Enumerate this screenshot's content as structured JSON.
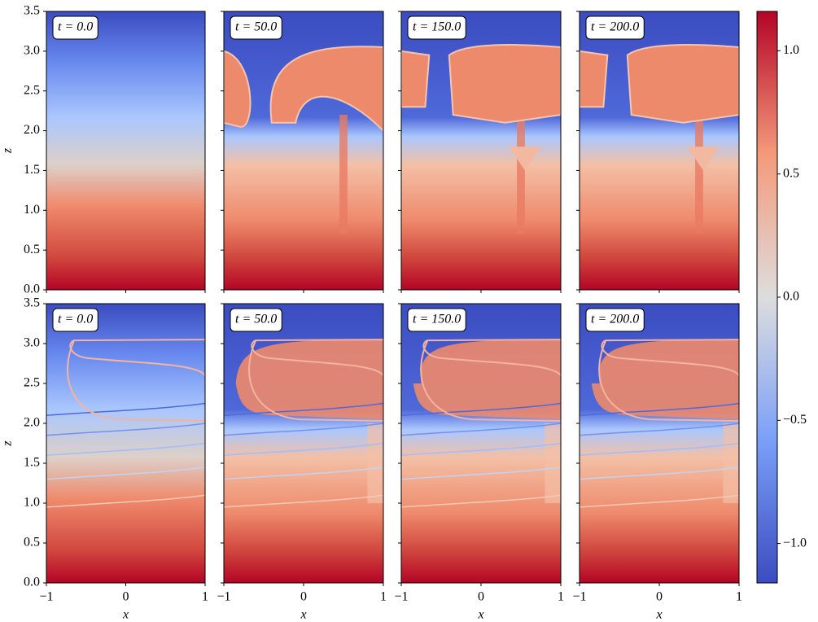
{
  "chart_data": {
    "type": "heatmap",
    "colormap": "coolwarm",
    "panels": [
      {
        "label": "t = 0.0"
      },
      {
        "label": "t = 50.0"
      },
      {
        "label": "t = 150.0"
      },
      {
        "label": "t = 200.0"
      },
      {
        "label": "t = 0.0"
      },
      {
        "label": "t = 50.0"
      },
      {
        "label": "t = 150.0"
      },
      {
        "label": "t = 200.0"
      }
    ],
    "xlabel": "x",
    "ylabel": "z",
    "xlim": [
      -1,
      1
    ],
    "xticks": [
      {
        "value": -1,
        "label": "−1"
      },
      0,
      1
    ],
    "ylim": [
      0,
      3.5
    ],
    "yticks": [
      {
        "value": 0,
        "label": "0.0"
      },
      0.5,
      {
        "value": 1,
        "label": "1.0"
      },
      1.5,
      {
        "value": 2,
        "label": "2.0"
      },
      2.5,
      {
        "value": 3,
        "label": "3.0"
      },
      3.5
    ],
    "colorbar": {
      "lim": [
        -1.16,
        1.16
      ],
      "ticks": [
        {
          "value": -1,
          "label": "−1.0"
        },
        {
          "value": -0.5,
          "label": "−0.5"
        },
        {
          "value": 0,
          "label": "0.0"
        },
        {
          "value": 0.5,
          "label": "0.5"
        },
        {
          "value": 1,
          "label": "1.0"
        }
      ]
    }
  }
}
